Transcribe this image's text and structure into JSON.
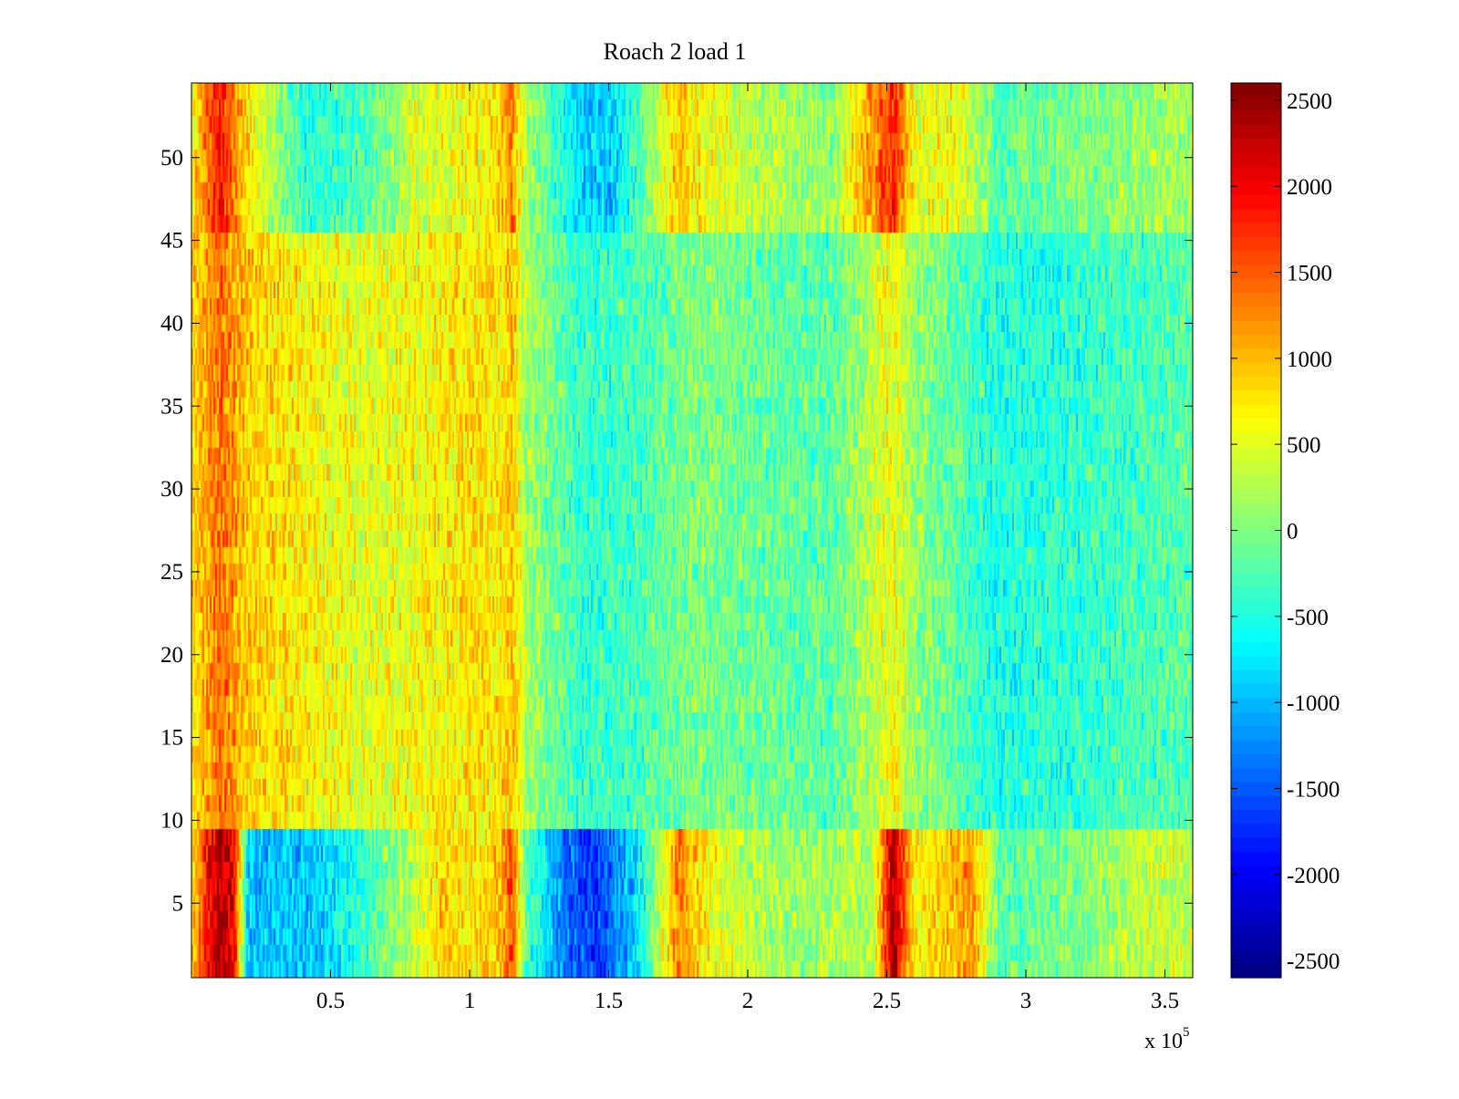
{
  "chart_data": {
    "type": "heatmap",
    "title": "Roach 2 load 1",
    "xlabel": "",
    "ylabel": "",
    "x_multiplier": {
      "base": "x 10",
      "exponent": "5"
    },
    "xlim": [
      0,
      3.6
    ],
    "ylim": [
      0.5,
      54.5
    ],
    "x_ticks": [
      0.5,
      1,
      1.5,
      2,
      2.5,
      3,
      3.5
    ],
    "x_tick_labels": [
      "0.5",
      "1",
      "1.5",
      "2",
      "2.5",
      "3",
      "3.5"
    ],
    "y_ticks": [
      5,
      10,
      15,
      20,
      25,
      30,
      35,
      40,
      45,
      50
    ],
    "y_tick_labels": [
      "5",
      "10",
      "15",
      "20",
      "25",
      "30",
      "35",
      "40",
      "45",
      "50"
    ],
    "rows": 54,
    "colorbar": {
      "range": [
        -2600,
        2600
      ],
      "ticks": [
        2500,
        2000,
        1500,
        1000,
        500,
        0,
        -500,
        -1000,
        -1500,
        -2000,
        -2500
      ],
      "tick_labels": [
        "2500",
        "2000",
        "1500",
        "1000",
        "500",
        "0",
        "-500",
        "-1000",
        "-1500",
        "-2000",
        "-2500"
      ],
      "colormap": "jet"
    },
    "approx_column_profile_bottom_rows_1_to_9": {
      "x": [
        0.0,
        0.05,
        0.1,
        0.15,
        0.2,
        0.4,
        0.55,
        0.8,
        0.9,
        1.0,
        1.1,
        1.15,
        1.2,
        1.35,
        1.45,
        1.6,
        1.75,
        1.8,
        1.9,
        2.0,
        2.2,
        2.45,
        2.52,
        2.6,
        2.75,
        2.8,
        2.9,
        3.2,
        3.45,
        3.6
      ],
      "values": [
        800,
        1800,
        2400,
        2000,
        -900,
        -1000,
        -600,
        300,
        900,
        700,
        900,
        1500,
        -200,
        -1400,
        -1700,
        -800,
        1300,
        900,
        500,
        300,
        100,
        300,
        2400,
        700,
        1000,
        1200,
        -200,
        0,
        400,
        300
      ]
    },
    "approx_column_profile_middle_rows_10_to_45": {
      "x": [
        0.0,
        0.1,
        0.2,
        0.4,
        0.6,
        0.8,
        1.0,
        1.1,
        1.15,
        1.2,
        1.4,
        1.6,
        1.8,
        2.0,
        2.3,
        2.52,
        2.6,
        2.9,
        3.2,
        3.6
      ],
      "values": [
        800,
        1400,
        900,
        700,
        500,
        600,
        800,
        700,
        1000,
        200,
        -400,
        -300,
        0,
        -100,
        -200,
        600,
        100,
        -500,
        -400,
        -200
      ]
    },
    "approx_column_profile_top_rows_46_to_54": {
      "x": [
        0.0,
        0.1,
        0.2,
        0.4,
        0.6,
        0.8,
        1.0,
        1.1,
        1.15,
        1.2,
        1.4,
        1.5,
        1.6,
        1.75,
        1.8,
        2.0,
        2.3,
        2.52,
        2.6,
        2.75,
        2.9,
        3.2,
        3.6
      ],
      "values": [
        700,
        1900,
        700,
        -400,
        -300,
        400,
        600,
        800,
        1300,
        200,
        -800,
        -900,
        -300,
        1000,
        700,
        300,
        100,
        1800,
        500,
        600,
        -200,
        0,
        200
      ]
    },
    "noise_amplitude": 600
  }
}
